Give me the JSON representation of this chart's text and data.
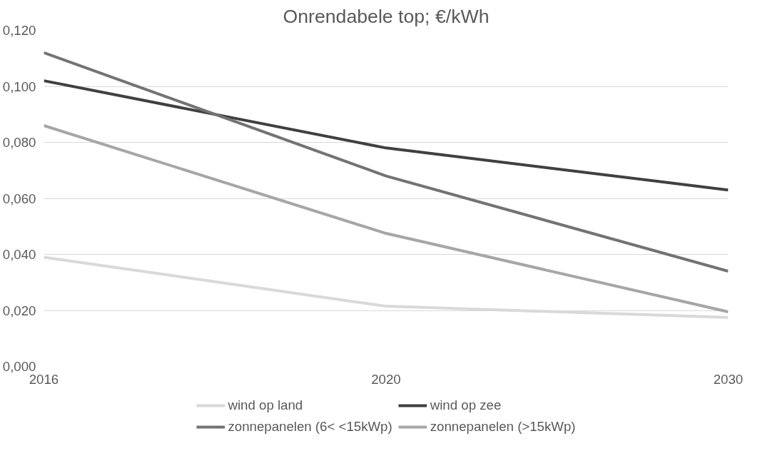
{
  "chart_data": {
    "type": "line",
    "title": "Onrendabele top; €/kWh",
    "categories": [
      "2016",
      "2020",
      "2030"
    ],
    "series": [
      {
        "name": "wind op land",
        "color": "#d9d9d9",
        "values": [
          0.039,
          0.0215,
          0.0175
        ]
      },
      {
        "name": "wind op zee",
        "color": "#404040",
        "values": [
          0.102,
          0.078,
          0.063
        ]
      },
      {
        "name": "zonnepanelen (6< <15kWp)",
        "color": "#737373",
        "values": [
          0.112,
          0.068,
          0.034
        ]
      },
      {
        "name": "zonnepanelen (>15kWp)",
        "color": "#a6a6a6",
        "values": [
          0.086,
          0.0475,
          0.0195
        ]
      }
    ],
    "ylim": [
      0,
      0.12
    ],
    "yticks": [
      {
        "value": 0,
        "label": "0,000"
      },
      {
        "value": 0.02,
        "label": "0,020"
      },
      {
        "value": 0.04,
        "label": "0,040"
      },
      {
        "value": 0.06,
        "label": "0,060"
      },
      {
        "value": 0.08,
        "label": "0,080"
      },
      {
        "value": 0.1,
        "label": "0,100"
      },
      {
        "value": 0.12,
        "label": "0,120"
      }
    ],
    "grid": "y",
    "legend": "bottom",
    "marker": "none",
    "line_style": "solid"
  }
}
